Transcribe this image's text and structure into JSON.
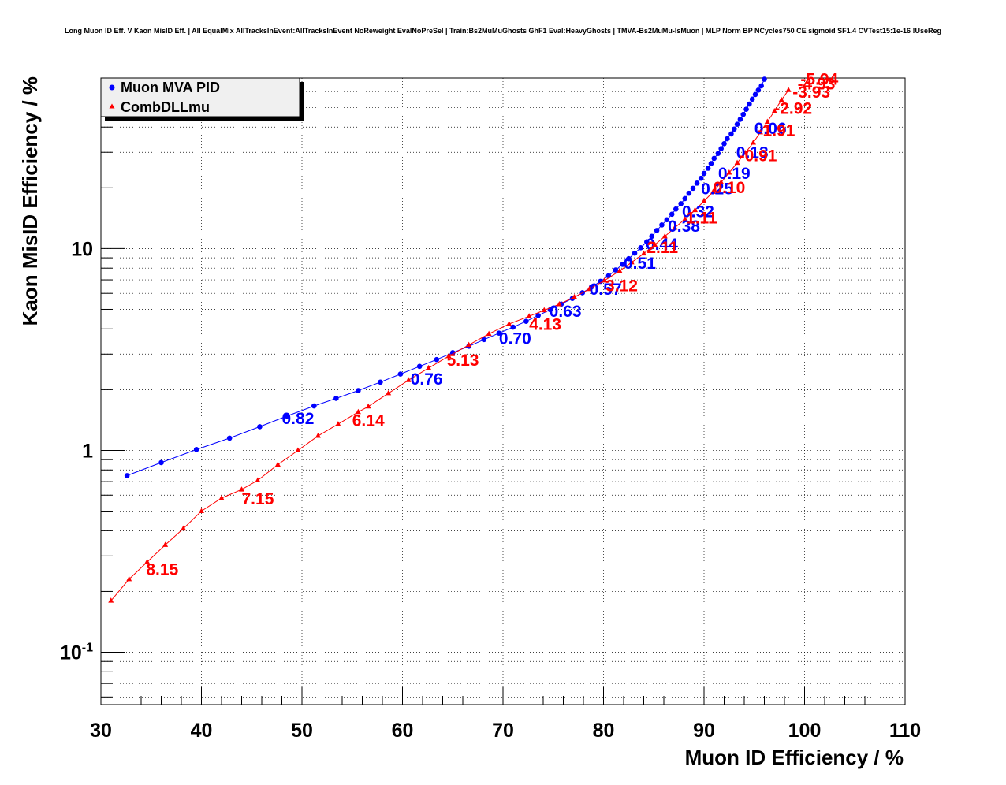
{
  "chart_data": {
    "type": "scatter",
    "title": "Long Muon ID Eff. V Kaon MisID Eff. | All EqualMix AllTracksInEvent:AllTracksInEvent NoReweight EvalNoPreSel | Train:Bs2MuMuGhosts GhF1 Eval:HeavyGhosts | TMVA-Bs2MuMu-IsMuon | MLP Norm BP NCycles750 CE sigmoid SF1.4 CVTest15:1e-16 !UseReg",
    "xlabel": "Muon ID Efficiency / %",
    "ylabel": "Kaon MisID Efficiency / %",
    "xlim": [
      30,
      110
    ],
    "ylim": [
      0.055,
      70
    ],
    "yscale": "log",
    "grid": true,
    "legend_position": "top-left",
    "x_ticks": [
      "30",
      "40",
      "50",
      "60",
      "70",
      "80",
      "90",
      "100",
      "110"
    ],
    "y_ticks": [
      {
        "value": 0.1,
        "mantissa": "10",
        "exponent": "-1"
      },
      {
        "value": 1,
        "mantissa": "1",
        "exponent": ""
      },
      {
        "value": 10,
        "mantissa": "10",
        "exponent": ""
      }
    ],
    "series": [
      {
        "name": "Muon MVA PID",
        "color": "#0000ff",
        "marker": "circle",
        "x": [
          32.6,
          36.0,
          39.5,
          42.8,
          45.8,
          48.5,
          51.2,
          53.4,
          55.6,
          57.8,
          59.8,
          61.7,
          63.4,
          65.0,
          66.6,
          68.1,
          69.6,
          71.0,
          72.3,
          73.5,
          74.7,
          75.8,
          76.9,
          77.9,
          78.8,
          79.7,
          80.5,
          81.2,
          81.9,
          82.5,
          83.1,
          83.7,
          84.3,
          84.8,
          85.3,
          85.8,
          86.3,
          86.8,
          87.2,
          87.7,
          88.1,
          88.5,
          88.9,
          89.3,
          89.7,
          90.0,
          90.4,
          90.7,
          91.0,
          91.4,
          91.7,
          92.0,
          92.3,
          92.7,
          93.0,
          93.3,
          93.6,
          93.9,
          94.2,
          94.5,
          94.8,
          95.1,
          95.4,
          95.7,
          96.0
        ],
        "y": [
          0.75,
          0.87,
          1.01,
          1.15,
          1.31,
          1.48,
          1.66,
          1.81,
          1.98,
          2.18,
          2.39,
          2.61,
          2.82,
          3.05,
          3.28,
          3.54,
          3.81,
          4.08,
          4.36,
          4.66,
          4.98,
          5.31,
          5.66,
          6.04,
          6.45,
          6.88,
          7.33,
          7.83,
          8.35,
          8.91,
          9.49,
          10.1,
          10.8,
          11.5,
          12.3,
          13.1,
          13.9,
          14.8,
          15.7,
          16.7,
          17.7,
          18.8,
          19.9,
          21.1,
          22.3,
          23.6,
          25.0,
          26.4,
          28.0,
          29.6,
          31.3,
          33.1,
          35.0,
          37.0,
          39.1,
          41.3,
          43.7,
          46.2,
          49.0,
          52.0,
          55.0,
          58.0,
          61.0,
          64.0,
          69.0
        ],
        "annotations": [
          {
            "text": "0.82",
            "x": 48.0,
            "y": 1.45
          },
          {
            "text": "0.76",
            "x": 60.8,
            "y": 2.28
          },
          {
            "text": "0.70",
            "x": 69.6,
            "y": 3.62
          },
          {
            "text": "0.63",
            "x": 74.6,
            "y": 4.93
          },
          {
            "text": "0.57",
            "x": 78.6,
            "y": 6.35
          },
          {
            "text": "0.51",
            "x": 82.0,
            "y": 8.55
          },
          {
            "text": "0.44",
            "x": 84.2,
            "y": 10.6
          },
          {
            "text": "0.38",
            "x": 86.4,
            "y": 13.0
          },
          {
            "text": "0.32",
            "x": 87.8,
            "y": 15.4
          },
          {
            "text": "0.25",
            "x": 89.7,
            "y": 20.0
          },
          {
            "text": "0.19",
            "x": 91.4,
            "y": 23.8
          },
          {
            "text": "0.13",
            "x": 93.2,
            "y": 30.2
          },
          {
            "text": "0.06",
            "x": 95.0,
            "y": 39.7
          }
        ]
      },
      {
        "name": "CombDLLmu",
        "color": "#ff0000",
        "marker": "triangle",
        "x": [
          31.0,
          32.8,
          34.6,
          36.4,
          38.2,
          40.0,
          42.0,
          44.0,
          45.6,
          47.6,
          49.6,
          51.6,
          53.6,
          55.6,
          56.6,
          58.6,
          60.6,
          62.6,
          64.6,
          66.6,
          68.6,
          70.6,
          72.6,
          74.1,
          75.6,
          77.1,
          78.6,
          80.1,
          81.6,
          82.8,
          84.0,
          85.1,
          86.1,
          87.1,
          88.1,
          89.1,
          90.0,
          90.9,
          91.7,
          92.5,
          93.3,
          94.1,
          94.9,
          95.6,
          96.3,
          97.0,
          97.7,
          98.4
        ],
        "y": [
          0.18,
          0.23,
          0.28,
          0.34,
          0.41,
          0.5,
          0.58,
          0.64,
          0.71,
          0.85,
          1.0,
          1.18,
          1.35,
          1.55,
          1.65,
          1.92,
          2.23,
          2.56,
          2.93,
          3.33,
          3.78,
          4.23,
          4.62,
          4.95,
          5.3,
          5.75,
          6.3,
          6.95,
          7.75,
          8.55,
          9.45,
          10.45,
          11.5,
          12.7,
          14.0,
          15.5,
          17.2,
          19.1,
          21.3,
          23.8,
          26.6,
          29.8,
          33.5,
          37.7,
          42.5,
          48.0,
          54.5,
          61.0
        ],
        "annotations": [
          {
            "text": "8.15",
            "x": 34.5,
            "y": 0.26
          },
          {
            "text": "7.15",
            "x": 44.0,
            "y": 0.58
          },
          {
            "text": "6.14",
            "x": 55.0,
            "y": 1.42
          },
          {
            "text": "5.13",
            "x": 64.4,
            "y": 2.82
          },
          {
            "text": "4.13",
            "x": 72.6,
            "y": 4.25
          },
          {
            "text": "3.12",
            "x": 80.2,
            "y": 6.6
          },
          {
            "text": "2.11",
            "x": 84.3,
            "y": 10.2
          },
          {
            "text": "1.11",
            "x": 88.2,
            "y": 14.3
          },
          {
            "text": "0.10",
            "x": 90.9,
            "y": 20.2
          },
          {
            "text": "-0.91",
            "x": 93.5,
            "y": 29.1
          },
          {
            "text": "-1.91",
            "x": 95.3,
            "y": 38.8
          },
          {
            "text": "-2.92",
            "x": 97.0,
            "y": 50.0
          },
          {
            "text": "-3.93",
            "x": 98.8,
            "y": 60.0
          },
          {
            "text": "-4.93",
            "x": 99.3,
            "y": 66.0
          },
          {
            "text": "-5.94",
            "x": 99.6,
            "y": 69.8
          }
        ]
      }
    ]
  }
}
